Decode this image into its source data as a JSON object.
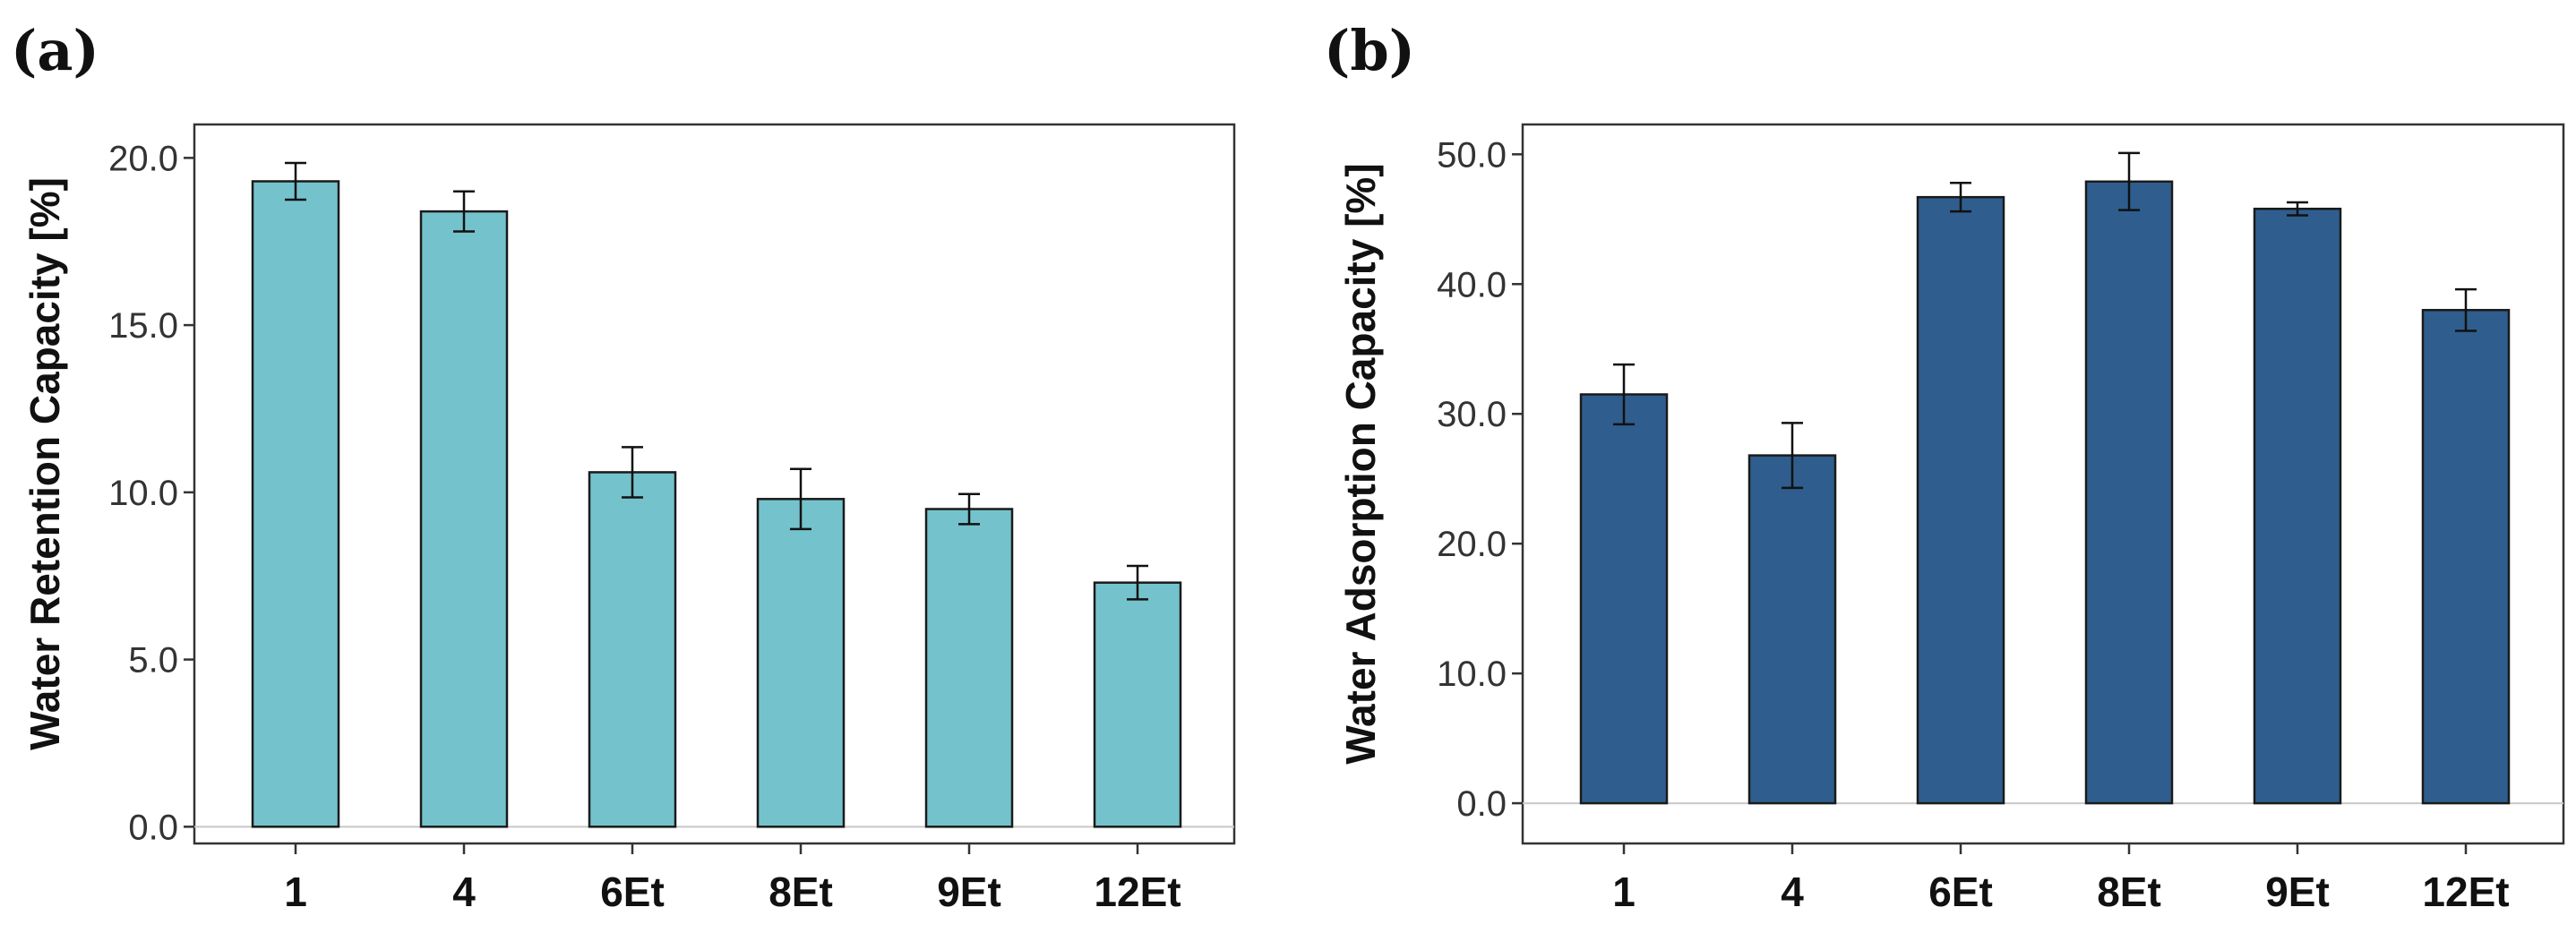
{
  "chart_data": [
    {
      "type": "bar",
      "panel": "(a)",
      "title": "",
      "xlabel": "",
      "ylabel": "Water Retention Capacity [%]",
      "categories": [
        "1",
        "4",
        "6Et",
        "8Et",
        "9Et",
        "12Et"
      ],
      "values": [
        19.3,
        18.4,
        10.6,
        9.8,
        9.5,
        7.3
      ],
      "errors": [
        0.55,
        0.6,
        0.75,
        0.9,
        0.45,
        0.5
      ],
      "yticks": [
        "0.0",
        "5.0",
        "10.0",
        "15.0",
        "20.0"
      ],
      "ytick_values": [
        0,
        5,
        10,
        15,
        20
      ],
      "ylim": [
        -0.5,
        21.0
      ],
      "color": "#74c3cc",
      "grid": false
    },
    {
      "type": "bar",
      "panel": "(b)",
      "title": "",
      "xlabel": "",
      "ylabel": "Water Adsorption Capacity [%]",
      "categories": [
        "1",
        "4",
        "6Et",
        "8Et",
        "9Et",
        "12Et"
      ],
      "values": [
        31.5,
        26.8,
        46.7,
        47.9,
        45.8,
        38.0
      ],
      "errors": [
        2.3,
        2.5,
        1.1,
        2.2,
        0.5,
        1.6
      ],
      "yticks": [
        "0.0",
        "10.0",
        "20.0",
        "30.0",
        "40.0",
        "50.0"
      ],
      "ytick_values": [
        0,
        10,
        20,
        30,
        40,
        50
      ],
      "ylim": [
        -3.1,
        52.3
      ],
      "color": "#2f5e8e",
      "grid": false
    }
  ]
}
